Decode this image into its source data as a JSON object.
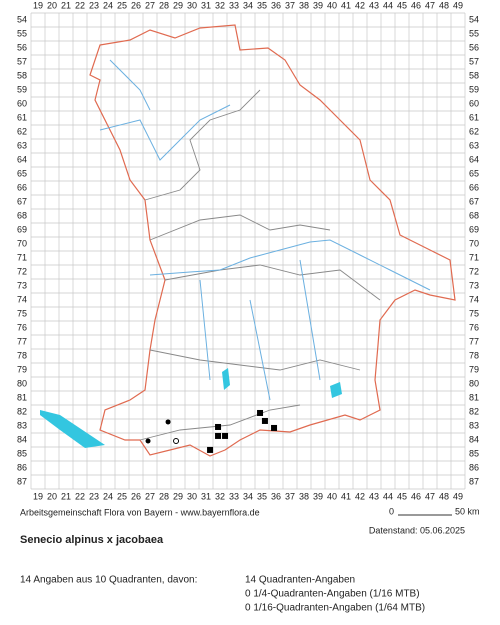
{
  "map": {
    "columns": [
      19,
      20,
      21,
      22,
      23,
      24,
      25,
      26,
      27,
      28,
      29,
      30,
      31,
      32,
      33,
      34,
      35,
      36,
      37,
      38,
      39,
      40,
      41,
      42,
      43,
      44,
      45,
      46,
      47,
      48,
      49
    ],
    "rows": [
      54,
      55,
      56,
      57,
      58,
      59,
      60,
      61,
      62,
      63,
      64,
      65,
      66,
      67,
      68,
      69,
      70,
      71,
      72,
      73,
      74,
      75,
      76,
      77,
      78,
      79,
      80,
      81,
      82,
      83,
      84,
      85,
      86,
      87
    ],
    "points": [
      {
        "x": 28.29,
        "y": 82.71,
        "symbol": "dot"
      },
      {
        "x": 26.86,
        "y": 84.07,
        "symbol": "dot"
      },
      {
        "x": 28.86,
        "y": 84.07,
        "symbol": "circle"
      },
      {
        "x": 34.86,
        "y": 82.07,
        "symbol": "square"
      },
      {
        "x": 35.21,
        "y": 82.64,
        "symbol": "square"
      },
      {
        "x": 31.86,
        "y": 83.07,
        "symbol": "square"
      },
      {
        "x": 31.86,
        "y": 83.71,
        "symbol": "square"
      },
      {
        "x": 32.36,
        "y": 83.71,
        "symbol": "square"
      },
      {
        "x": 35.86,
        "y": 83.14,
        "symbol": "square"
      },
      {
        "x": 31.29,
        "y": 84.71,
        "symbol": "square"
      }
    ]
  },
  "footer": {
    "credit": "Arbeitsgemeinschaft Flora von Bayern - www.bayernflora.de",
    "scale_start": "0",
    "scale_end": "50 km",
    "date": "Datenstand: 05.06.2025",
    "title": "Senecio alpinus x jacobaea",
    "summary": "14 Angaben aus 10 Quadranten, davon:",
    "details": [
      "14 Quadranten-Angaben",
      "0 1/4-Quadranten-Angaben (1/16 MTB)",
      "0 1/16-Quadranten-Angaben (1/64 MTB)"
    ]
  }
}
